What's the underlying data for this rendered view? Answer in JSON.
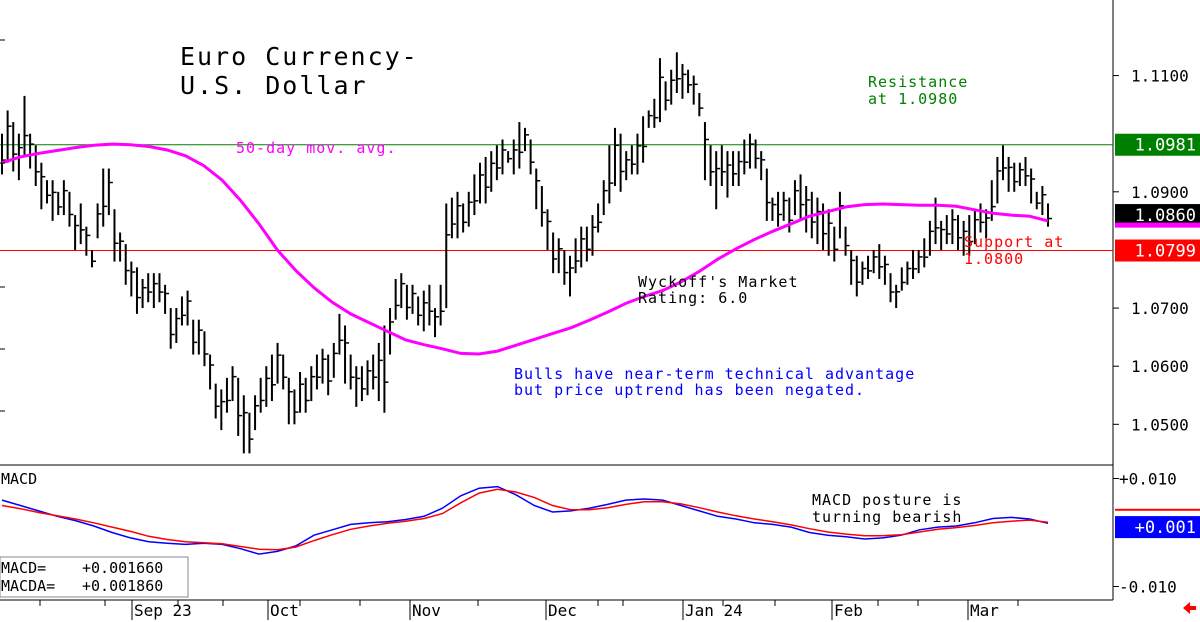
{
  "chart_data": [
    {
      "type": "ohlc_bar",
      "title": [
        "Euro Currency-",
        "U.S. Dollar"
      ],
      "y_ticks": [
        "1.1100",
        "1.0900",
        "1.0700",
        "1.0600",
        "1.0500"
      ],
      "ylim": [
        1.043,
        1.123
      ],
      "resistance": {
        "value": 1.0981,
        "tag": "1.0981",
        "label": [
          "Resistance",
          "at 1.0980"
        ],
        "color": "#008000"
      },
      "support": {
        "value": 1.0799,
        "tag": "1.0799",
        "label": [
          "Support at",
          "1.0800"
        ],
        "color": "#ff0000"
      },
      "last_price": {
        "value": 1.086,
        "tag": "1.0860"
      },
      "ma_label": "50-day mov. avg.",
      "rating": [
        "Wyckoff's Market",
        "Rating: 6.0"
      ],
      "comment": [
        "Bulls have near-term technical advantage",
        "but price uptrend has been negated."
      ],
      "colors": {
        "bars": "#000000",
        "ma": "#ff00ff",
        "comment": "#0000ff",
        "resistance": "#008000",
        "support": "#ff0000"
      },
      "bars": [
        [
          1.1,
          1.093
        ],
        [
          1.104,
          1.095
        ],
        [
          1.102,
          1.0935
        ],
        [
          1.1,
          1.092
        ],
        [
          1.1065,
          1.096
        ],
        [
          1.1,
          1.094
        ],
        [
          1.098,
          1.091
        ],
        [
          1.095,
          1.087
        ],
        [
          1.092,
          1.088
        ],
        [
          1.092,
          1.085
        ],
        [
          1.09,
          1.086
        ],
        [
          1.092,
          1.086
        ],
        [
          1.09,
          1.084
        ],
        [
          1.086,
          1.08
        ],
        [
          1.088,
          1.081
        ],
        [
          1.084,
          1.079
        ],
        [
          1.08,
          1.077
        ],
        [
          1.088,
          1.082
        ],
        [
          1.094,
          1.084
        ],
        [
          1.094,
          1.086
        ],
        [
          1.087,
          1.078
        ],
        [
          1.083,
          1.078
        ],
        [
          1.081,
          1.074
        ],
        [
          1.078,
          1.072
        ],
        [
          1.077,
          1.069
        ],
        [
          1.075,
          1.07
        ],
        [
          1.076,
          1.071
        ],
        [
          1.076,
          1.07
        ],
        [
          1.076,
          1.071
        ],
        [
          1.074,
          1.069
        ],
        [
          1.07,
          1.063
        ],
        [
          1.07,
          1.064
        ],
        [
          1.072,
          1.067
        ],
        [
          1.073,
          1.067
        ],
        [
          1.068,
          1.062
        ],
        [
          1.068,
          1.062
        ],
        [
          1.066,
          1.06
        ],
        [
          1.062,
          1.056
        ],
        [
          1.057,
          1.051
        ],
        [
          1.056,
          1.049
        ],
        [
          1.058,
          1.052
        ],
        [
          1.06,
          1.054
        ],
        [
          1.058,
          1.048
        ],
        [
          1.055,
          1.045
        ],
        [
          1.052,
          1.045
        ],
        [
          1.055,
          1.049
        ],
        [
          1.058,
          1.052
        ],
        [
          1.06,
          1.053
        ],
        [
          1.062,
          1.054
        ],
        [
          1.064,
          1.057
        ],
        [
          1.062,
          1.056
        ],
        [
          1.058,
          1.05
        ],
        [
          1.056,
          1.05
        ],
        [
          1.059,
          1.052
        ],
        [
          1.058,
          1.052
        ],
        [
          1.06,
          1.054
        ],
        [
          1.062,
          1.056
        ],
        [
          1.063,
          1.057
        ],
        [
          1.062,
          1.055
        ],
        [
          1.064,
          1.058
        ],
        [
          1.069,
          1.062
        ],
        [
          1.067,
          1.057
        ],
        [
          1.062,
          1.056
        ],
        [
          1.06,
          1.053
        ],
        [
          1.06,
          1.054
        ],
        [
          1.061,
          1.055
        ],
        [
          1.062,
          1.056
        ],
        [
          1.064,
          1.054
        ],
        [
          1.067,
          1.052
        ],
        [
          1.07,
          1.062
        ],
        [
          1.075,
          1.068
        ],
        [
          1.076,
          1.07
        ],
        [
          1.074,
          1.068
        ],
        [
          1.074,
          1.069
        ],
        [
          1.072,
          1.067
        ],
        [
          1.073,
          1.066
        ],
        [
          1.074,
          1.067
        ],
        [
          1.07,
          1.065
        ],
        [
          1.074,
          1.067
        ],
        [
          1.088,
          1.07
        ],
        [
          1.089,
          1.082
        ],
        [
          1.09,
          1.082
        ],
        [
          1.088,
          1.083
        ],
        [
          1.09,
          1.084
        ],
        [
          1.093,
          1.086
        ],
        [
          1.095,
          1.088
        ],
        [
          1.096,
          1.088
        ],
        [
          1.097,
          1.09
        ],
        [
          1.098,
          1.092
        ],
        [
          1.099,
          1.093
        ],
        [
          1.097,
          1.095
        ],
        [
          1.099,
          1.093
        ],
        [
          1.102,
          1.094
        ],
        [
          1.101,
          1.097
        ],
        [
          1.099,
          1.093
        ],
        [
          1.094,
          1.087
        ],
        [
          1.091,
          1.084
        ],
        [
          1.087,
          1.08
        ],
        [
          1.083,
          1.076
        ],
        [
          1.082,
          1.076
        ],
        [
          1.08,
          1.074
        ],
        [
          1.079,
          1.072
        ],
        [
          1.082,
          1.076
        ],
        [
          1.084,
          1.077
        ],
        [
          1.084,
          1.078
        ],
        [
          1.086,
          1.079
        ],
        [
          1.088,
          1.083
        ],
        [
          1.092,
          1.086
        ],
        [
          1.098,
          1.088
        ],
        [
          1.101,
          1.091
        ],
        [
          1.1,
          1.09
        ],
        [
          1.097,
          1.092
        ],
        [
          1.098,
          1.093
        ],
        [
          1.1,
          1.093
        ],
        [
          1.103,
          1.095
        ],
        [
          1.104,
          1.101
        ],
        [
          1.106,
          1.101
        ],
        [
          1.113,
          1.102
        ],
        [
          1.109,
          1.104
        ],
        [
          1.111,
          1.105
        ],
        [
          1.114,
          1.107
        ],
        [
          1.112,
          1.106
        ],
        [
          1.111,
          1.107
        ],
        [
          1.11,
          1.105
        ],
        [
          1.107,
          1.103
        ],
        [
          1.102,
          1.092
        ],
        [
          1.098,
          1.091
        ],
        [
          1.097,
          1.087
        ],
        [
          1.098,
          1.091
        ],
        [
          1.097,
          1.089
        ],
        [
          1.097,
          1.091
        ],
        [
          1.097,
          1.091
        ],
        [
          1.099,
          1.093
        ],
        [
          1.1,
          1.094
        ],
        [
          1.099,
          1.094
        ],
        [
          1.097,
          1.092
        ],
        [
          1.094,
          1.085
        ],
        [
          1.089,
          1.085
        ],
        [
          1.09,
          1.084
        ],
        [
          1.09,
          1.085
        ],
        [
          1.089,
          1.083
        ],
        [
          1.092,
          1.086
        ],
        [
          1.093,
          1.085
        ],
        [
          1.091,
          1.083
        ],
        [
          1.09,
          1.082
        ],
        [
          1.089,
          1.081
        ],
        [
          1.088,
          1.08
        ],
        [
          1.087,
          1.079
        ],
        [
          1.084,
          1.078
        ],
        [
          1.09,
          1.082
        ],
        [
          1.084,
          1.079
        ],
        [
          1.08,
          1.074
        ],
        [
          1.079,
          1.072
        ],
        [
          1.078,
          1.074
        ],
        [
          1.079,
          1.075
        ],
        [
          1.08,
          1.076
        ],
        [
          1.081,
          1.075
        ],
        [
          1.079,
          1.074
        ],
        [
          1.076,
          1.071
        ],
        [
          1.074,
          1.07
        ],
        [
          1.077,
          1.073
        ],
        [
          1.078,
          1.074
        ],
        [
          1.08,
          1.075
        ],
        [
          1.08,
          1.076
        ],
        [
          1.082,
          1.077
        ],
        [
          1.085,
          1.079
        ],
        [
          1.089,
          1.081
        ],
        [
          1.085,
          1.08
        ],
        [
          1.086,
          1.081
        ],
        [
          1.087,
          1.081
        ],
        [
          1.086,
          1.08
        ],
        [
          1.085,
          1.079
        ],
        [
          1.086,
          1.079
        ],
        [
          1.087,
          1.081
        ],
        [
          1.088,
          1.083
        ],
        [
          1.087,
          1.082
        ],
        [
          1.092,
          1.085
        ],
        [
          1.096,
          1.088
        ],
        [
          1.098,
          1.092
        ],
        [
          1.096,
          1.09
        ],
        [
          1.095,
          1.09
        ],
        [
          1.095,
          1.091
        ],
        [
          1.096,
          1.091
        ],
        [
          1.094,
          1.088
        ],
        [
          1.09,
          1.087
        ],
        [
          1.091,
          1.086
        ],
        [
          1.088,
          1.084
        ]
      ],
      "moving_average": [
        1.095,
        1.096,
        1.0966,
        1.0971,
        1.0976,
        1.098,
        1.0982,
        1.0981,
        1.0978,
        1.0972,
        1.0962,
        1.0945,
        1.092,
        1.0885,
        1.0845,
        1.08,
        1.0765,
        1.0735,
        1.071,
        1.069,
        1.0675,
        1.066,
        1.0645,
        1.0637,
        1.063,
        1.0622,
        1.0621,
        1.0626,
        1.0636,
        1.0646,
        1.0656,
        1.0666,
        1.0679,
        1.0693,
        1.0708,
        1.072,
        1.073,
        1.0745,
        1.0763,
        1.0784,
        1.0802,
        1.0818,
        1.0832,
        1.0845,
        1.0858,
        1.0866,
        1.0874,
        1.0878,
        1.0879,
        1.0878,
        1.0877,
        1.0877,
        1.0875,
        1.0869,
        1.0863,
        1.086,
        1.0858,
        1.085
      ],
      "dates": [
        "Sep 23",
        "Oct",
        "Nov",
        "Dec",
        "Jan 24",
        "Feb",
        "Mar"
      ]
    },
    {
      "type": "line",
      "title": "MACD",
      "y_ticks": [
        "+0.010",
        "-0.010"
      ],
      "ylim": [
        -0.0125,
        0.0125
      ],
      "current_tag": "+0.001",
      "stats": [
        {
          "label": "MACD=",
          "value": "+0.001660"
        },
        {
          "label": "MACDA=",
          "value": "+0.001860"
        }
      ],
      "comment": [
        "MACD posture is",
        "turning bearish"
      ],
      "series": [
        {
          "name": "MACD",
          "color": "#0000ff",
          "values": [
            0.006,
            0.005,
            0.004,
            0.003,
            0.0022,
            0.0012,
            0.0,
            -0.001,
            -0.0017,
            -0.002,
            -0.0022,
            -0.002,
            -0.0022,
            -0.003,
            -0.004,
            -0.0035,
            -0.0025,
            -0.0005,
            0.0005,
            0.0015,
            0.0018,
            0.002,
            0.0024,
            0.003,
            0.0045,
            0.0068,
            0.0082,
            0.0085,
            0.007,
            0.005,
            0.0038,
            0.004,
            0.0045,
            0.0052,
            0.006,
            0.0062,
            0.006,
            0.005,
            0.004,
            0.003,
            0.0025,
            0.0018,
            0.0015,
            0.001,
            0.0,
            -0.0005,
            -0.0008,
            -0.0012,
            -0.001,
            -0.0005,
            0.0005,
            0.001,
            0.0012,
            0.0018,
            0.0026,
            0.0028,
            0.0025,
            0.0017
          ]
        },
        {
          "name": "MACDA",
          "color": "#ff0000",
          "values": [
            0.005,
            0.0044,
            0.0037,
            0.0031,
            0.0025,
            0.0018,
            0.001,
            0.0002,
            -0.0007,
            -0.0013,
            -0.0017,
            -0.0019,
            -0.0021,
            -0.0026,
            -0.0031,
            -0.0032,
            -0.0027,
            -0.0015,
            -0.0004,
            0.0006,
            0.0012,
            0.0017,
            0.0021,
            0.0026,
            0.0035,
            0.0055,
            0.0073,
            0.008,
            0.0075,
            0.0065,
            0.005,
            0.0042,
            0.0042,
            0.0046,
            0.0052,
            0.0057,
            0.0057,
            0.0053,
            0.0046,
            0.0038,
            0.0031,
            0.0025,
            0.002,
            0.0014,
            0.0007,
            0.0001,
            -0.0003,
            -0.0006,
            -0.0006,
            -0.0004,
            0.0001,
            0.0006,
            0.0009,
            0.0013,
            0.0018,
            0.0021,
            0.0023,
            0.0019
          ]
        }
      ]
    }
  ],
  "nav": {
    "arrow": "left-arrow-icon"
  }
}
